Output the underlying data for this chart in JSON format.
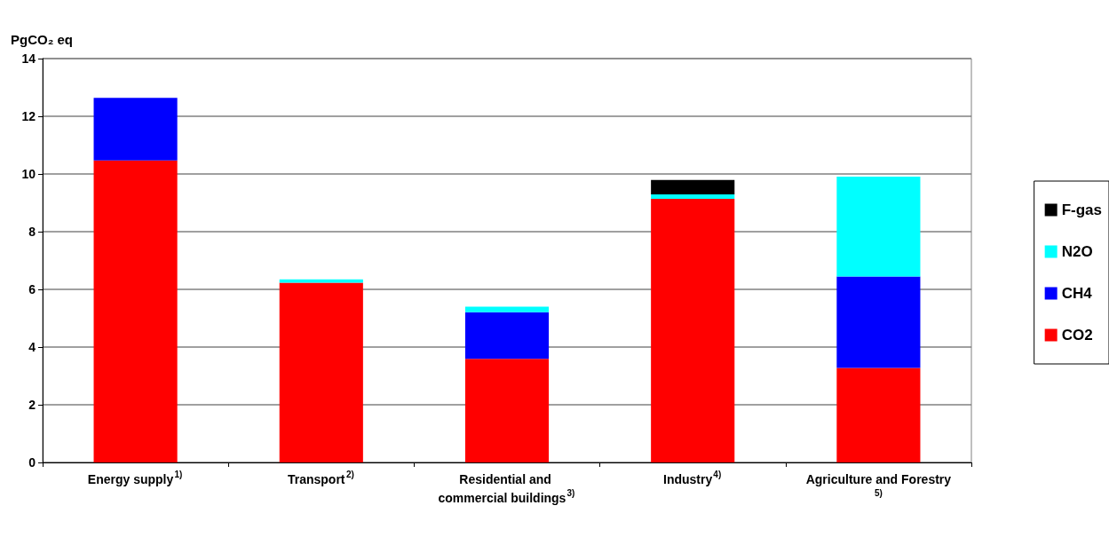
{
  "chart_data": {
    "type": "bar",
    "ylabel": "PgCO₂ eq",
    "categories": [
      "Energy supply$^{1)}$",
      "Transport$^{2)}$",
      "Residential and commercial buildings$^{3)}$",
      "Industry$^{4)}$",
      "Agriculture and Forestry$^{5)}$"
    ],
    "series": [
      {
        "name": "CO2",
        "color": "#ff0000",
        "values": [
          10.47,
          6.23,
          3.59,
          9.14,
          3.28
        ]
      },
      {
        "name": "CH4",
        "color": "#0000ff",
        "values": [
          2.17,
          null,
          1.62,
          null,
          3.17
        ]
      },
      {
        "name": "N2O",
        "color": "#00ffff",
        "values": [
          null,
          0.12,
          0.19,
          0.15,
          3.46
        ]
      },
      {
        "name": "F-gas",
        "color": "#000000",
        "values": [
          null,
          null,
          null,
          0.5,
          null
        ]
      }
    ],
    "stacked": true,
    "ylim": [
      0,
      14
    ],
    "yticks": [
      0,
      2,
      4,
      6,
      8,
      10,
      12,
      14
    ],
    "grid": "y",
    "legend": "right"
  }
}
